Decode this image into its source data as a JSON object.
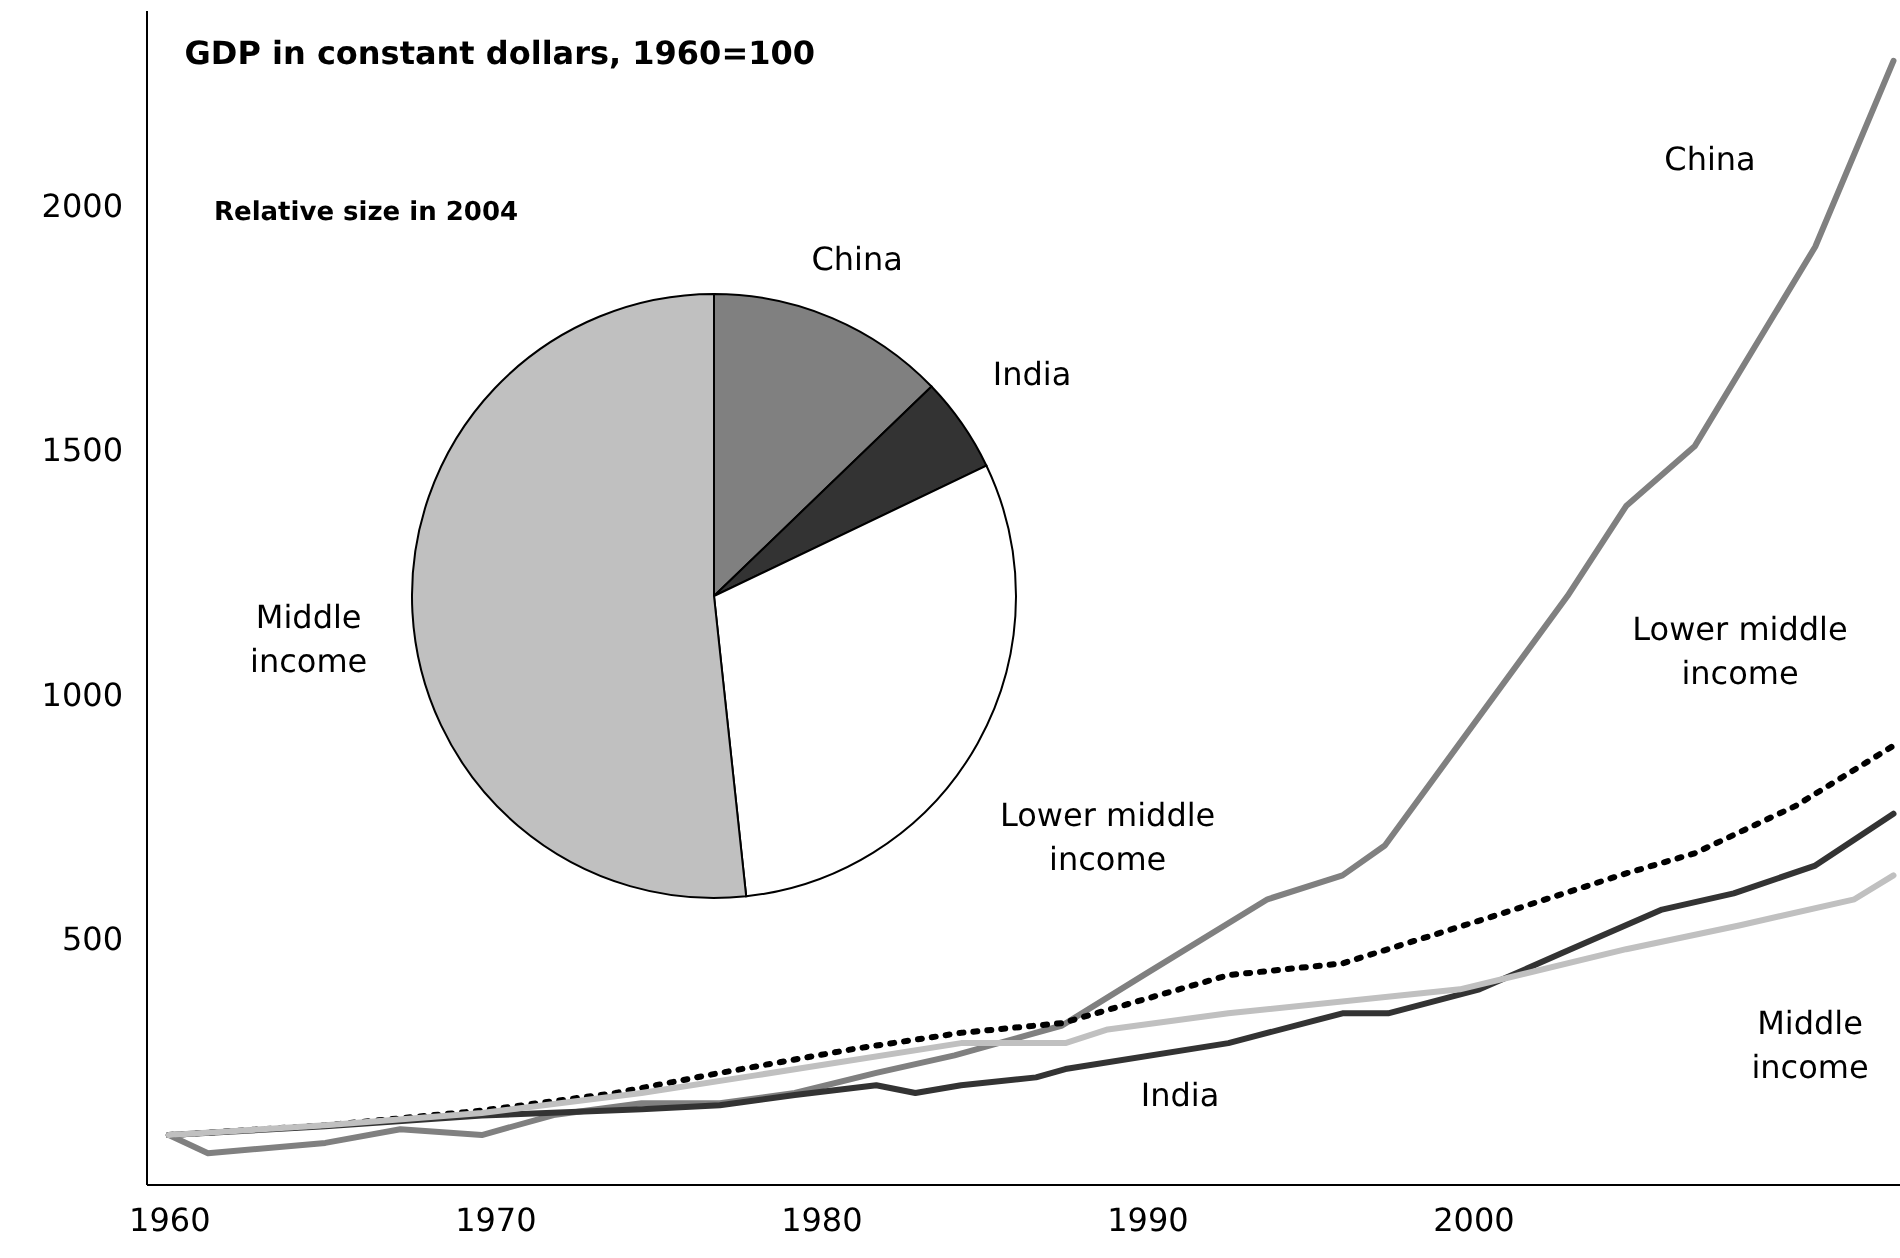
{
  "chart_data": [
    {
      "type": "line",
      "title": "GDP in constant dollars, 1960=100",
      "xlim": [
        1959.3,
        2013.1
      ],
      "ylim": [
        0,
        2400
      ],
      "xticks": [
        1960,
        1970,
        1980,
        1990,
        2000
      ],
      "yticks": [
        500,
        1000,
        1500,
        2000
      ],
      "grid": false,
      "marker": "none",
      "line_style": "solid",
      "series": [
        {
          "name": "China",
          "color": "#808080",
          "x": [
            1960.0,
            1961.2,
            1964.8,
            1967.1,
            1969.6,
            1971.8,
            1974.5,
            1976.9,
            1979.2,
            1981.7,
            1984.1,
            1987.4,
            1990.0,
            1993.7,
            1996.0,
            1997.3,
            2002.9,
            2004.7,
            2006.8,
            2010.5,
            2012.9
          ],
          "values": [
            100,
            63,
            84,
            112,
            100,
            141,
            165,
            165,
            186,
            227,
            263,
            324,
            431,
            582,
            631,
            692,
            1202,
            1386,
            1508,
            1916,
            2296
          ]
        },
        {
          "name": "India",
          "color": "#333333",
          "x": [
            1960.0,
            1964.8,
            1969.6,
            1974.5,
            1976.9,
            1979.2,
            1981.7,
            1982.9,
            1984.3,
            1986.6,
            1987.5,
            1992.5,
            1996.0,
            1997.4,
            2000.2,
            2002.7,
            2005.8,
            2008.0,
            2010.5,
            2012.9
          ],
          "values": [
            100,
            118,
            140,
            153,
            161,
            182,
            202,
            186,
            202,
            218,
            235,
            288,
            349,
            349,
            398,
            471,
            561,
            594,
            651,
            757
          ]
        },
        {
          "name": "Lower middle income",
          "color": "#000000",
          "line_style": "dotted",
          "x": [
            1960.0,
            1964.8,
            1969.6,
            1973.7,
            1976.9,
            1981.0,
            1984.3,
            1987.4,
            1992.5,
            1996.0,
            2000.7,
            2004.7,
            2006.8,
            2009.9,
            2012.9
          ],
          "values": [
            100,
            120,
            150,
            186,
            227,
            276,
            309,
            329,
            427,
            451,
            549,
            635,
            676,
            773,
            896
          ]
        },
        {
          "name": "Middle income",
          "color": "#c0c0c0",
          "x": [
            1960.0,
            1964.8,
            1969.6,
            1974.5,
            1978.0,
            1984.3,
            1987.5,
            1988.8,
            1992.5,
            1999.6,
            2004.7,
            2008.2,
            2011.7,
            2012.9
          ],
          "values": [
            100,
            120,
            145,
            186,
            222,
            288,
            288,
            316,
            349,
            398,
            480,
            529,
            582,
            631
          ]
        }
      ]
    },
    {
      "type": "pie",
      "title": "Relative size in 2004",
      "categories": [
        "China",
        "India",
        "Lower middle income",
        "Middle income"
      ],
      "values": [
        12.8,
        5.1,
        30.4,
        51.7
      ],
      "colors": [
        "#808080",
        "#333333",
        "#ffffff",
        "#c0c0c0"
      ]
    }
  ]
}
